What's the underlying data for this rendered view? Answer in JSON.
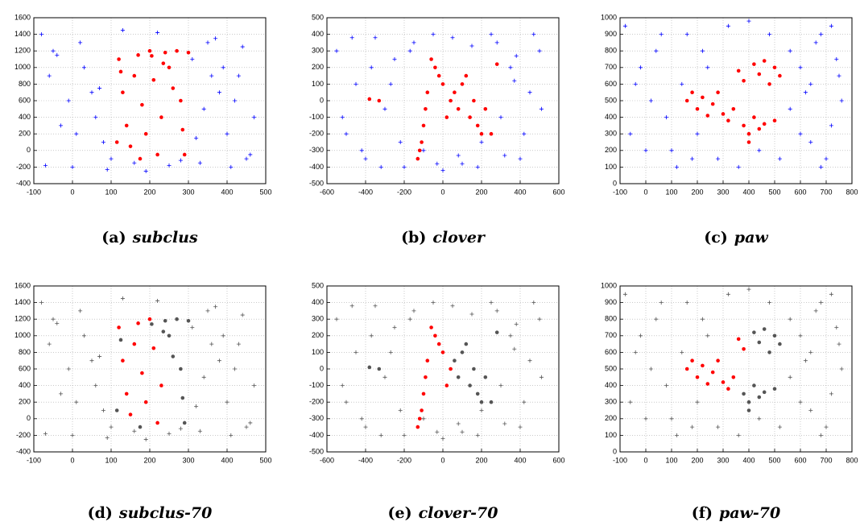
{
  "chart_data": [
    {
      "type": "scatter",
      "label": "(a)",
      "title": "subclus",
      "grid": true,
      "xlim": [
        -100,
        500
      ],
      "xticks": [
        -100,
        0,
        100,
        200,
        300,
        400,
        500
      ],
      "ylim": [
        -400,
        1600
      ],
      "yticks": [
        -400,
        -200,
        0,
        200,
        400,
        600,
        800,
        1000,
        1200,
        1400,
        1600
      ],
      "series": [
        {
          "color": "#0000ff",
          "marker": "plus",
          "x": [
            -80,
            -60,
            -30,
            0,
            20,
            50,
            80,
            100,
            130,
            160,
            190,
            220,
            250,
            280,
            310,
            340,
            370,
            400,
            430,
            460,
            -70,
            -40,
            -10,
            30,
            60,
            90,
            320,
            350,
            380,
            410,
            440,
            470,
            330,
            360,
            390,
            420,
            450,
            -50,
            10,
            70
          ],
          "y": [
            1400,
            900,
            300,
            -200,
            1300,
            700,
            100,
            -100,
            1450,
            -150,
            -250,
            1420,
            -180,
            -120,
            1100,
            500,
            1350,
            200,
            900,
            -50,
            -180,
            1150,
            600,
            1000,
            400,
            -230,
            150,
            1300,
            700,
            -200,
            1250,
            400,
            -150,
            900,
            1000,
            600,
            -100,
            1200,
            200,
            750
          ]
        },
        {
          "color": "#ff0000",
          "marker": "dot",
          "x": [
            120,
            130,
            140,
            150,
            160,
            170,
            180,
            190,
            200,
            210,
            220,
            230,
            240,
            250,
            260,
            270,
            280,
            290,
            300,
            115,
            125,
            175,
            205,
            235,
            285
          ],
          "y": [
            1100,
            700,
            300,
            50,
            900,
            1150,
            550,
            200,
            1200,
            850,
            -50,
            400,
            1180,
            1000,
            750,
            1200,
            600,
            -50,
            1180,
            100,
            950,
            -100,
            1140,
            1050,
            250
          ]
        }
      ]
    },
    {
      "type": "scatter",
      "label": "(b)",
      "title": "clover",
      "grid": true,
      "xlim": [
        -600,
        600
      ],
      "xticks": [
        -600,
        -400,
        -200,
        0,
        200,
        400,
        600
      ],
      "ylim": [
        -500,
        500
      ],
      "yticks": [
        -500,
        -400,
        -300,
        -200,
        -100,
        0,
        100,
        200,
        300,
        400,
        500
      ],
      "series": [
        {
          "color": "#0000ff",
          "marker": "plus",
          "x": [
            -550,
            -500,
            -450,
            -400,
            -350,
            -300,
            -250,
            -200,
            -150,
            -100,
            -50,
            0,
            50,
            100,
            150,
            200,
            250,
            300,
            350,
            400,
            450,
            500,
            -520,
            -470,
            -420,
            -370,
            -320,
            -270,
            -220,
            -170,
            320,
            370,
            420,
            470,
            510,
            -30,
            80,
            180,
            280,
            380
          ],
          "y": [
            300,
            -200,
            100,
            -350,
            380,
            -50,
            250,
            -400,
            350,
            -300,
            400,
            -420,
            380,
            -380,
            330,
            -250,
            400,
            -100,
            200,
            -350,
            50,
            300,
            -100,
            380,
            -300,
            200,
            -400,
            100,
            -250,
            300,
            -330,
            120,
            -200,
            400,
            -50,
            -380,
            -330,
            -400,
            350,
            270
          ]
        },
        {
          "color": "#ff0000",
          "marker": "dot",
          "x": [
            -130,
            -120,
            -110,
            -100,
            -90,
            -80,
            -60,
            -40,
            -20,
            0,
            20,
            40,
            60,
            80,
            100,
            120,
            140,
            160,
            180,
            200,
            220,
            250,
            280,
            -380,
            -330
          ],
          "y": [
            -350,
            -300,
            -250,
            -150,
            -50,
            50,
            250,
            200,
            150,
            100,
            -100,
            0,
            50,
            -50,
            100,
            150,
            -100,
            0,
            -150,
            -200,
            -50,
            -200,
            220,
            10,
            0
          ]
        }
      ]
    },
    {
      "type": "scatter",
      "label": "(c)",
      "title": "paw",
      "grid": true,
      "xlim": [
        -100,
        800
      ],
      "xticks": [
        -100,
        0,
        100,
        200,
        300,
        400,
        500,
        600,
        700,
        800
      ],
      "ylim": [
        0,
        1000
      ],
      "yticks": [
        0,
        100,
        200,
        300,
        400,
        500,
        600,
        700,
        800,
        900,
        1000
      ],
      "series": [
        {
          "color": "#0000ff",
          "marker": "plus",
          "x": [
            -80,
            -40,
            0,
            40,
            80,
            120,
            160,
            200,
            240,
            280,
            320,
            360,
            400,
            440,
            480,
            520,
            560,
            600,
            640,
            680,
            720,
            760,
            -60,
            -20,
            20,
            60,
            100,
            140,
            180,
            220,
            560,
            600,
            640,
            680,
            720,
            750,
            620,
            660,
            700,
            740
          ],
          "y": [
            950,
            600,
            200,
            800,
            400,
            100,
            900,
            300,
            700,
            150,
            950,
            100,
            980,
            200,
            900,
            150,
            800,
            300,
            600,
            100,
            950,
            500,
            300,
            700,
            500,
            900,
            200,
            600,
            150,
            800,
            450,
            700,
            250,
            900,
            350,
            650,
            550,
            850,
            150,
            750
          ]
        },
        {
          "color": "#ff0000",
          "marker": "dot",
          "x": [
            160,
            180,
            200,
            220,
            240,
            260,
            280,
            300,
            320,
            340,
            360,
            380,
            400,
            420,
            440,
            460,
            480,
            500,
            520,
            380,
            420,
            460,
            500,
            400,
            440
          ],
          "y": [
            500,
            550,
            450,
            520,
            410,
            480,
            550,
            420,
            380,
            450,
            680,
            620,
            300,
            720,
            660,
            740,
            600,
            700,
            650,
            350,
            400,
            360,
            380,
            250,
            330
          ]
        }
      ]
    },
    {
      "type": "scatter",
      "label": "(d)",
      "title": "subclus-70",
      "grid": true,
      "xlim": [
        -100,
        500
      ],
      "xticks": [
        -100,
        0,
        100,
        200,
        300,
        400,
        500
      ],
      "ylim": [
        -400,
        1600
      ],
      "yticks": [
        -400,
        -200,
        0,
        200,
        400,
        600,
        800,
        1000,
        1200,
        1400,
        1600
      ],
      "series": [
        {
          "color": "#555555",
          "marker": "plus",
          "x": [
            -80,
            -60,
            -30,
            0,
            20,
            50,
            80,
            100,
            130,
            160,
            190,
            220,
            250,
            280,
            310,
            340,
            370,
            400,
            430,
            460,
            -70,
            -40,
            -10,
            30,
            60,
            90,
            320,
            350,
            380,
            410,
            440,
            470,
            330,
            360,
            390,
            420,
            450,
            -50,
            10,
            70
          ],
          "y": [
            1400,
            900,
            300,
            -200,
            1300,
            700,
            100,
            -100,
            1450,
            -150,
            -250,
            1420,
            -180,
            -120,
            1100,
            500,
            1350,
            200,
            900,
            -50,
            -180,
            1150,
            600,
            1000,
            400,
            -230,
            150,
            1300,
            700,
            -200,
            1250,
            400,
            -150,
            900,
            1000,
            600,
            -100,
            1200,
            200,
            750
          ]
        },
        {
          "color": "#ff0000",
          "marker": "dot",
          "x": [
            120,
            130,
            140,
            150,
            160,
            170,
            180,
            190,
            200,
            210,
            220,
            230
          ],
          "y": [
            1100,
            700,
            300,
            50,
            900,
            1150,
            550,
            200,
            1200,
            850,
            -50,
            400
          ]
        },
        {
          "color": "#555555",
          "marker": "dot",
          "x": [
            240,
            250,
            260,
            270,
            280,
            290,
            300,
            115,
            125,
            175,
            205,
            235,
            285
          ],
          "y": [
            1180,
            1000,
            750,
            1200,
            600,
            -50,
            1180,
            100,
            950,
            -100,
            1140,
            1050,
            250
          ]
        }
      ]
    },
    {
      "type": "scatter",
      "label": "(e)",
      "title": "clover-70",
      "grid": true,
      "xlim": [
        -600,
        600
      ],
      "xticks": [
        -600,
        -400,
        -200,
        0,
        200,
        400,
        600
      ],
      "ylim": [
        -500,
        500
      ],
      "yticks": [
        -500,
        -400,
        -300,
        -200,
        -100,
        0,
        100,
        200,
        300,
        400,
        500
      ],
      "series": [
        {
          "color": "#555555",
          "marker": "plus",
          "x": [
            -550,
            -500,
            -450,
            -400,
            -350,
            -300,
            -250,
            -200,
            -150,
            -100,
            -50,
            0,
            50,
            100,
            150,
            200,
            250,
            300,
            350,
            400,
            450,
            500,
            -520,
            -470,
            -420,
            -370,
            -320,
            -270,
            -220,
            -170,
            320,
            370,
            420,
            470,
            510,
            -30,
            80,
            180,
            280,
            380
          ],
          "y": [
            300,
            -200,
            100,
            -350,
            380,
            -50,
            250,
            -400,
            350,
            -300,
            400,
            -420,
            380,
            -380,
            330,
            -250,
            400,
            -100,
            200,
            -350,
            50,
            300,
            -100,
            380,
            -300,
            200,
            -400,
            100,
            -250,
            300,
            -330,
            120,
            -200,
            400,
            -50,
            -380,
            -330,
            -400,
            350,
            270
          ]
        },
        {
          "color": "#ff0000",
          "marker": "dot",
          "x": [
            -130,
            -120,
            -110,
            -100,
            -90,
            -80,
            -60,
            -40,
            -20,
            0,
            20,
            40
          ],
          "y": [
            -350,
            -300,
            -250,
            -150,
            -50,
            50,
            250,
            200,
            150,
            100,
            -100,
            0
          ]
        },
        {
          "color": "#555555",
          "marker": "dot",
          "x": [
            60,
            80,
            100,
            120,
            140,
            160,
            180,
            200,
            220,
            250,
            280,
            -380,
            -330
          ],
          "y": [
            50,
            -50,
            100,
            150,
            -100,
            0,
            -150,
            -200,
            -50,
            -200,
            220,
            10,
            0
          ]
        }
      ]
    },
    {
      "type": "scatter",
      "label": "(f)",
      "title": "paw-70",
      "grid": true,
      "xlim": [
        -100,
        800
      ],
      "xticks": [
        -100,
        0,
        100,
        200,
        300,
        400,
        500,
        600,
        700,
        800
      ],
      "ylim": [
        0,
        1000
      ],
      "yticks": [
        0,
        100,
        200,
        300,
        400,
        500,
        600,
        700,
        800,
        900,
        1000
      ],
      "series": [
        {
          "color": "#555555",
          "marker": "plus",
          "x": [
            -80,
            -40,
            0,
            40,
            80,
            120,
            160,
            200,
            240,
            280,
            320,
            360,
            400,
            440,
            480,
            520,
            560,
            600,
            640,
            680,
            720,
            760,
            -60,
            -20,
            20,
            60,
            100,
            140,
            180,
            220,
            560,
            600,
            640,
            680,
            720,
            750,
            620,
            660,
            700,
            740
          ],
          "y": [
            950,
            600,
            200,
            800,
            400,
            100,
            900,
            300,
            700,
            150,
            950,
            100,
            980,
            200,
            900,
            150,
            800,
            300,
            600,
            100,
            950,
            500,
            300,
            700,
            500,
            900,
            200,
            600,
            150,
            800,
            450,
            700,
            250,
            900,
            350,
            650,
            550,
            850,
            150,
            750
          ]
        },
        {
          "color": "#ff0000",
          "marker": "dot",
          "x": [
            160,
            180,
            200,
            220,
            240,
            260,
            280,
            300,
            320,
            340,
            360,
            380
          ],
          "y": [
            500,
            550,
            450,
            520,
            410,
            480,
            550,
            420,
            380,
            450,
            680,
            620
          ]
        },
        {
          "color": "#555555",
          "marker": "dot",
          "x": [
            400,
            420,
            440,
            460,
            480,
            500,
            520,
            380,
            420,
            460,
            500,
            400,
            440
          ],
          "y": [
            300,
            720,
            660,
            740,
            600,
            700,
            650,
            350,
            400,
            360,
            380,
            250,
            330
          ]
        }
      ]
    }
  ]
}
